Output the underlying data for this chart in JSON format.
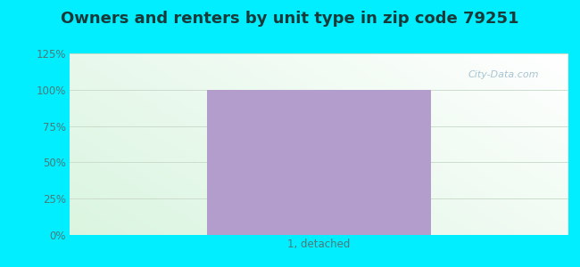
{
  "title": "Owners and renters by unit type in zip code 79251",
  "categories": [
    "1, detached"
  ],
  "values": [
    100
  ],
  "bar_color": "#b39dcc",
  "bar_alpha": 1.0,
  "ylim": [
    0,
    125
  ],
  "yticks": [
    0,
    25,
    50,
    75,
    100,
    125
  ],
  "ytick_labels": [
    "0%",
    "25%",
    "50%",
    "75%",
    "100%",
    "125%"
  ],
  "outer_bg_color": "#00eeff",
  "title_fontsize": 13,
  "title_color": "#1a3a3a",
  "tick_color": "#4a7a7a",
  "grid_color": "#ccddcc",
  "watermark_text": "City-Data.com",
  "watermark_color": "#99bbcc",
  "bar_width": 0.45
}
